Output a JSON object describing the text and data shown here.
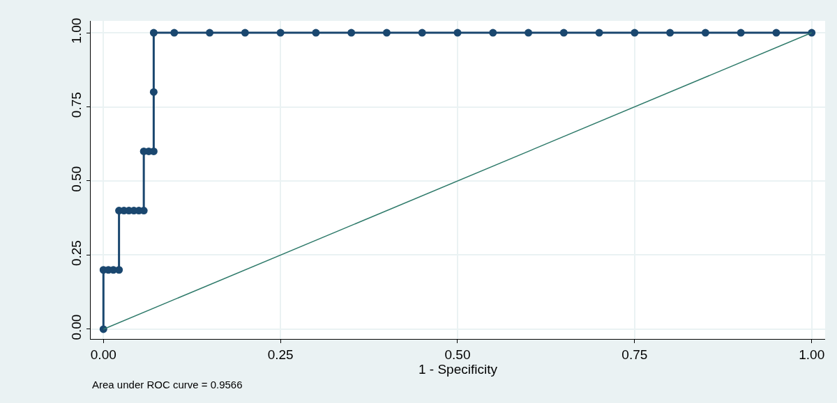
{
  "chart_data": {
    "type": "line",
    "xlabel": "1 - Specificity",
    "annotations": [
      "Area under ROC curve = 0.9566"
    ],
    "xlim": [
      -0.018,
      1.019
    ],
    "ylim": [
      -0.033,
      1.04
    ],
    "xticks": [
      {
        "value": 0,
        "label": "0.00"
      },
      {
        "value": 0.25,
        "label": "0.25"
      },
      {
        "value": 0.5,
        "label": "0.50"
      },
      {
        "value": 0.75,
        "label": "0.75"
      },
      {
        "value": 1,
        "label": "1.00"
      }
    ],
    "yticks": [
      {
        "value": 0,
        "label": "0.00"
      },
      {
        "value": 0.25,
        "label": "0.25"
      },
      {
        "value": 0.5,
        "label": "0.50"
      },
      {
        "value": 0.75,
        "label": "0.75"
      },
      {
        "value": 1,
        "label": "1.00"
      }
    ],
    "grid": true,
    "line_style": "solid",
    "series": [
      {
        "color": "#1a476f",
        "marker": "circle",
        "x": [
          0,
          0,
          0.007,
          0.014,
          0.022,
          0.022,
          0.029,
          0.036,
          0.043,
          0.05,
          0.057,
          0.057,
          0.064,
          0.071,
          0.071,
          0.071,
          0.1,
          0.15,
          0.2,
          0.25,
          0.3,
          0.35,
          0.4,
          0.45,
          0.5,
          0.55,
          0.6,
          0.65,
          0.7,
          0.75,
          0.8,
          0.85,
          0.9,
          0.95,
          1
        ],
        "values": [
          0,
          0.2,
          0.2,
          0.2,
          0.2,
          0.4,
          0.4,
          0.4,
          0.4,
          0.4,
          0.4,
          0.6,
          0.6,
          0.6,
          0.8,
          1,
          1,
          1,
          1,
          1,
          1,
          1,
          1,
          1,
          1,
          1,
          1,
          1,
          1,
          1,
          1,
          1,
          1,
          1,
          1
        ]
      },
      {
        "color": "#2e7a6a",
        "marker": "none",
        "x": [
          0,
          1
        ],
        "values": [
          0,
          1
        ]
      }
    ]
  }
}
